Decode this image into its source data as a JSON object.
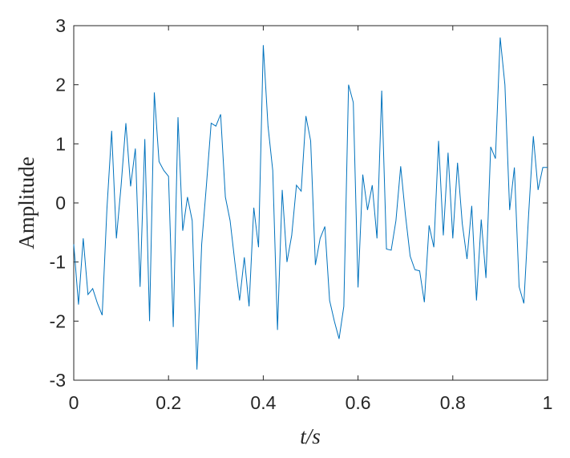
{
  "chart_data": {
    "type": "line",
    "x_label": "t/s",
    "y_label": "Amplitude",
    "x": [
      0,
      0.01,
      0.02,
      0.03,
      0.04,
      0.05,
      0.06,
      0.07,
      0.08,
      0.09,
      0.1,
      0.11,
      0.12,
      0.13,
      0.14,
      0.15,
      0.16,
      0.17,
      0.18,
      0.19,
      0.2,
      0.21,
      0.22,
      0.23,
      0.24,
      0.25,
      0.26,
      0.27,
      0.28,
      0.29,
      0.3,
      0.31,
      0.32,
      0.33,
      0.34,
      0.35,
      0.36,
      0.37,
      0.38,
      0.39,
      0.4,
      0.41,
      0.42,
      0.43,
      0.44,
      0.45,
      0.46,
      0.47,
      0.48,
      0.49,
      0.5,
      0.51,
      0.52,
      0.53,
      0.54,
      0.55,
      0.56,
      0.57,
      0.58,
      0.59,
      0.6,
      0.61,
      0.62,
      0.63,
      0.64,
      0.65,
      0.66,
      0.67,
      0.68,
      0.69,
      0.7,
      0.71,
      0.72,
      0.73,
      0.74,
      0.75,
      0.76,
      0.77,
      0.78,
      0.79,
      0.8,
      0.81,
      0.82,
      0.83,
      0.84,
      0.85,
      0.86,
      0.87,
      0.88,
      0.89,
      0.9,
      0.91,
      0.92,
      0.93,
      0.94,
      0.95,
      0.96,
      0.97,
      0.98,
      0.99,
      1
    ],
    "series": [
      {
        "color": "#0072bd",
        "values": [
          -0.7,
          -1.72,
          -0.6,
          -1.55,
          -1.45,
          -1.7,
          -1.9,
          -0.1,
          1.22,
          -0.6,
          0.3,
          1.35,
          0.28,
          0.92,
          -1.42,
          1.08,
          -2.0,
          1.87,
          0.7,
          0.55,
          0.45,
          -2.1,
          1.45,
          -0.47,
          0.1,
          -0.3,
          -2.82,
          -0.7,
          0.3,
          1.35,
          1.3,
          1.5,
          0.1,
          -0.3,
          -1.0,
          -1.65,
          -0.92,
          -1.75,
          -0.08,
          -0.75,
          2.67,
          1.3,
          0.55,
          -2.15,
          0.22,
          -1.0,
          -0.55,
          0.3,
          0.2,
          1.47,
          1.05,
          -1.05,
          -0.6,
          -0.4,
          -1.65,
          -2.0,
          -2.3,
          -1.75,
          2.0,
          1.7,
          -1.43,
          0.48,
          -0.12,
          0.3,
          -0.6,
          1.9,
          -0.78,
          -0.8,
          -0.3,
          0.62,
          -0.2,
          -0.9,
          -1.13,
          -1.15,
          -1.68,
          -0.38,
          -0.75,
          1.05,
          -0.55,
          0.85,
          -0.6,
          0.68,
          -0.35,
          -0.95,
          -0.05,
          -1.65,
          -0.28,
          -1.27,
          0.95,
          0.75,
          2.8,
          2.0,
          -0.12,
          0.6,
          -1.42,
          -1.7,
          -0.2,
          1.13,
          0.22,
          0.6,
          0.6
        ]
      }
    ],
    "xlim": [
      0,
      1
    ],
    "xticks": [
      0,
      0.2,
      0.4,
      0.6,
      0.8,
      1
    ],
    "ylim": [
      -3,
      3
    ],
    "yticks": [
      -3,
      -2,
      -1,
      0,
      1,
      2,
      3
    ]
  }
}
